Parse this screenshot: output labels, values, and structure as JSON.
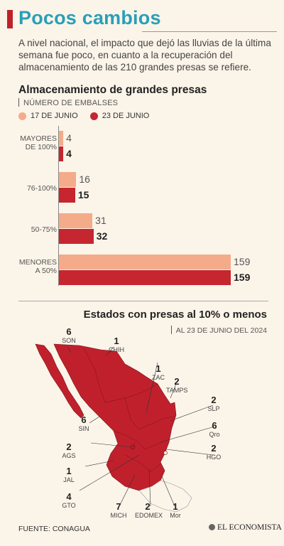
{
  "header": {
    "title": "Pocos cambios",
    "intro": "A nivel nacional, el impacto que dejó las lluvias de la última semana fue poco, en cuanto a la recuperación del almacenamiento de las 210 grandes presas se refiere."
  },
  "chart_data": {
    "type": "bar",
    "orientation": "horizontal",
    "title": "Almacenamiento de grandes presas",
    "subtitle": "NÚMERO DE EMBALSES",
    "categories": [
      "MAYORES DE 100%",
      "76-100%",
      "50-75%",
      "MENORES A 50%"
    ],
    "series": [
      {
        "name": "17 DE JUNIO",
        "values": [
          4,
          16,
          31,
          159
        ],
        "color": "#f4ab8a"
      },
      {
        "name": "23 DE JUNIO",
        "values": [
          4,
          15,
          32,
          159
        ],
        "color": "#c52630"
      }
    ],
    "xlim": [
      0,
      159
    ],
    "legend_position": "top-left",
    "grid": false
  },
  "categories_display": [
    {
      "l1": "MAYORES",
      "l2": "DE 100%"
    },
    {
      "l1": "76-100%",
      "l2": ""
    },
    {
      "l1": "50-75%",
      "l2": ""
    },
    {
      "l1": "MENORES",
      "l2": "A 50%"
    }
  ],
  "map_section": {
    "title": "Estados con presas al 10% o menos",
    "subtitle": "AL 23 DE JUNIO DEL 2024",
    "fill_color": "#c0202c",
    "states": [
      {
        "count": "6",
        "name": "SON"
      },
      {
        "count": "1",
        "name": "CHIH"
      },
      {
        "count": "1",
        "name": "ZAC"
      },
      {
        "count": "2",
        "name": "TAMPS"
      },
      {
        "count": "6",
        "name": "SIN"
      },
      {
        "count": "2",
        "name": "SLP"
      },
      {
        "count": "6",
        "name": "Qro"
      },
      {
        "count": "2",
        "name": "AGS"
      },
      {
        "count": "2",
        "name": "HGO"
      },
      {
        "count": "1",
        "name": "JAL"
      },
      {
        "count": "4",
        "name": "GTO"
      },
      {
        "count": "7",
        "name": "MICH"
      },
      {
        "count": "2",
        "name": "EDOMEX"
      },
      {
        "count": "1",
        "name": "Mor"
      }
    ]
  },
  "footer": {
    "source": "FUENTE: CONAGUA",
    "brand": "EL ECONOMISTA"
  }
}
